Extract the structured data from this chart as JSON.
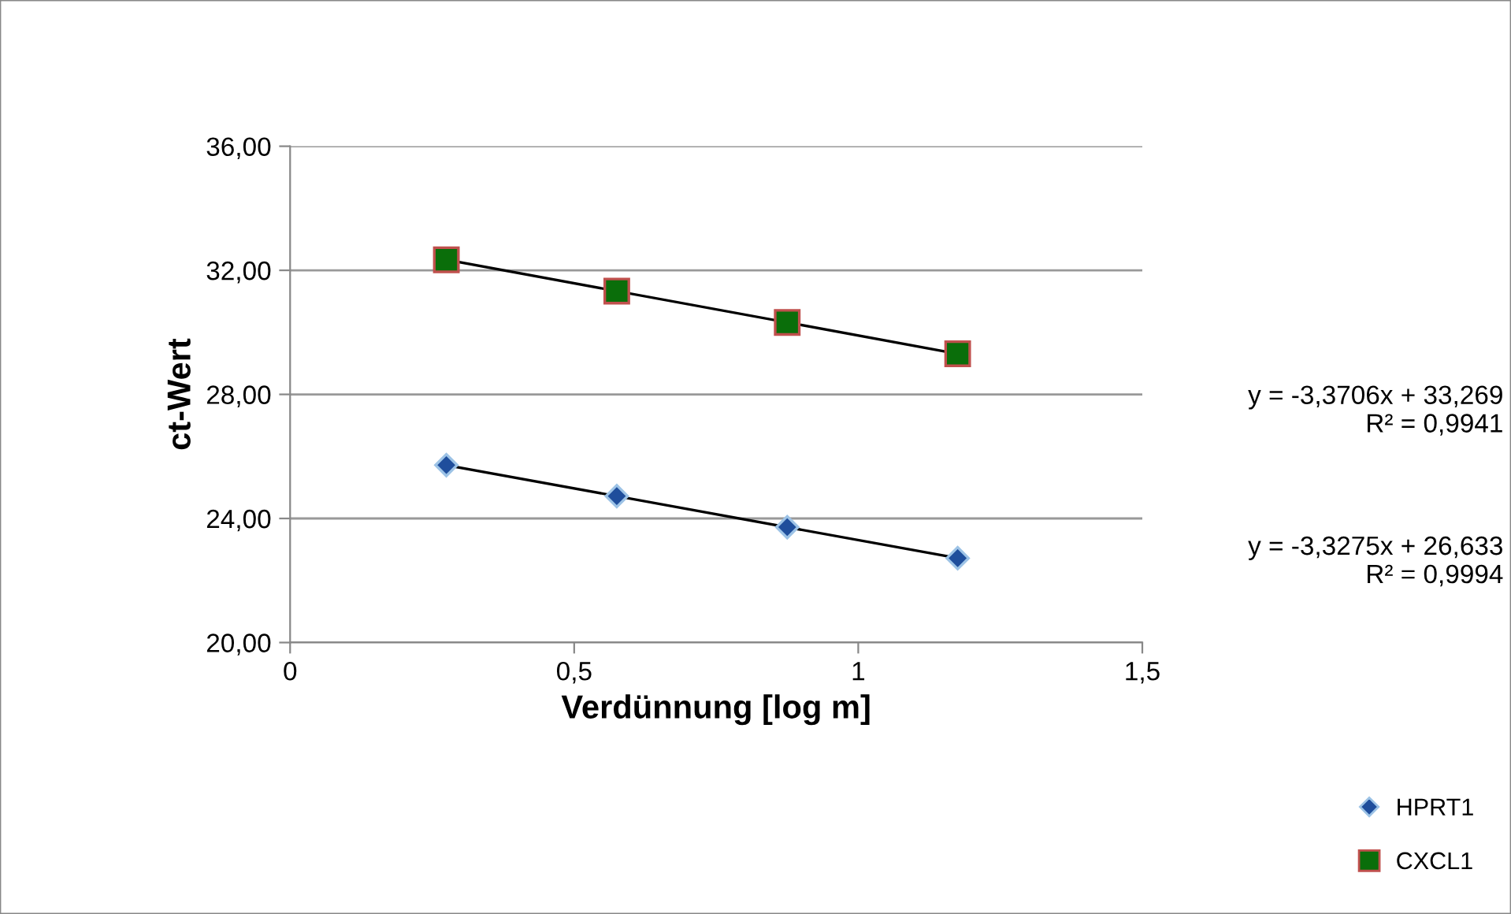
{
  "chart_data": {
    "type": "scatter",
    "xlabel": "Verdünnung [log m]",
    "ylabel": "ct-Wert",
    "xlim": [
      0,
      1.5
    ],
    "xticks": [
      0,
      {
        "value": 0.5,
        "label": "0,5"
      },
      1,
      {
        "value": 1.5,
        "label": "1,5"
      }
    ],
    "ylim": [
      20,
      36
    ],
    "yticks": [
      {
        "value": 20,
        "label": "20,00"
      },
      {
        "value": 24,
        "label": "24,00"
      },
      {
        "value": 28,
        "label": "28,00"
      },
      {
        "value": 32,
        "label": "32,00"
      },
      {
        "value": 36,
        "label": "36,00"
      }
    ],
    "grid": "y",
    "legend": "bottom right",
    "series": [
      {
        "name": "HPRT1",
        "marker": "diamond",
        "color": "#1f4e9c",
        "x": [
          0.275,
          0.575,
          0.875,
          1.175
        ],
        "values": [
          25.72,
          24.72,
          23.72,
          22.72
        ]
      },
      {
        "name": "CXCL1",
        "marker": "square",
        "color": "#0a6e0a",
        "x": [
          0.275,
          0.575,
          0.875,
          1.175
        ],
        "values": [
          32.34,
          31.33,
          30.32,
          29.31
        ]
      },
      {
        "type": "line",
        "color": "#000000",
        "marker": "none",
        "x": [
          0.275,
          1.175
        ],
        "values": [
          25.72,
          22.72
        ]
      },
      {
        "type": "line",
        "color": "#000000",
        "marker": "none",
        "x": [
          0.275,
          1.175
        ],
        "values": [
          32.34,
          29.31
        ]
      }
    ],
    "annotations": [
      "y = -3,3706x + 33,269\nR² = 0,9941",
      "y = -3,3275x + 26,633\nR² = 0,9994"
    ]
  }
}
